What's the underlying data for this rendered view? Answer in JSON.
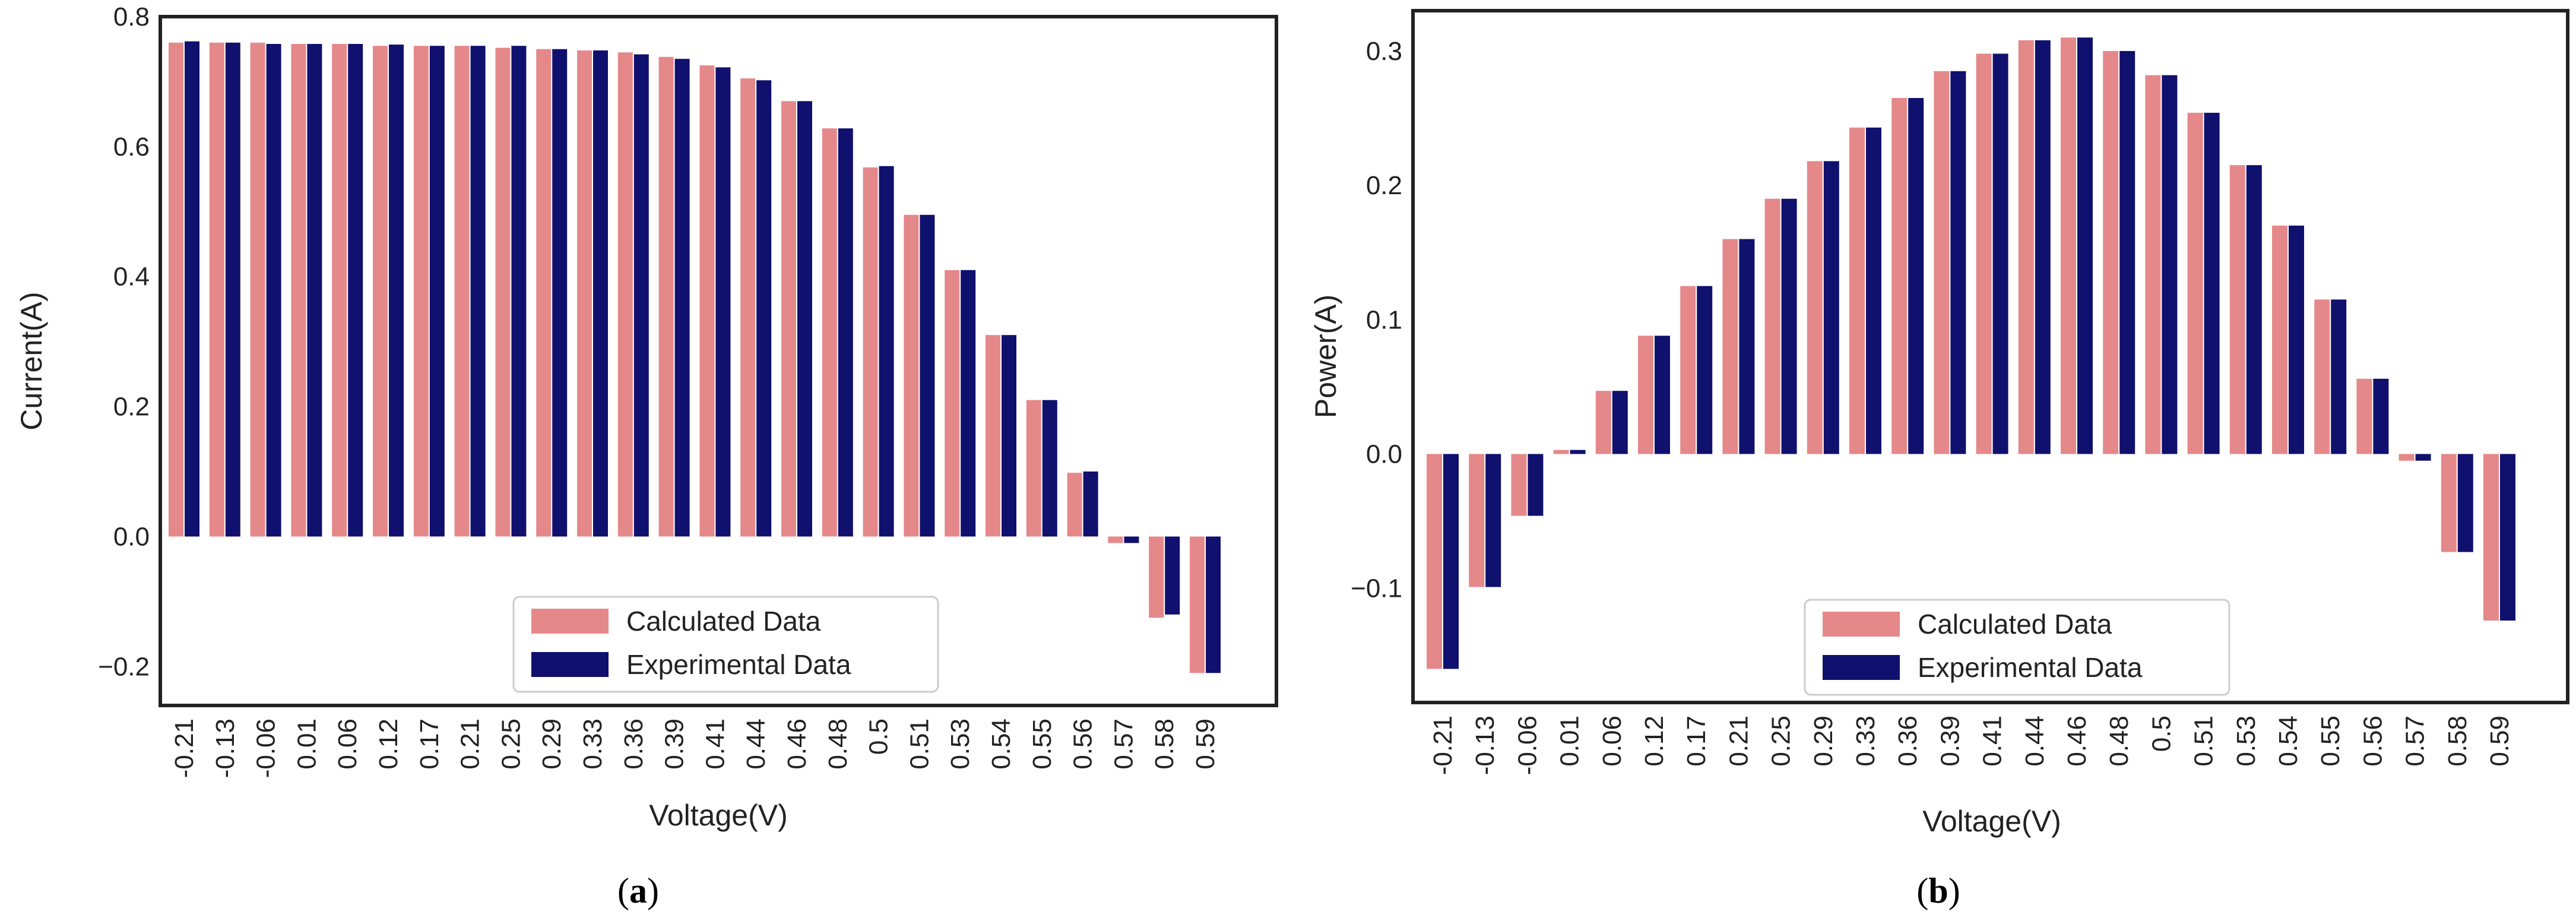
{
  "figure": {
    "caption_a": "(a)",
    "caption_b": "(b)"
  },
  "colors": {
    "calculated": "#E5888A",
    "experimental": "#10106E"
  },
  "chart_data": [
    {
      "id": "a",
      "type": "bar",
      "title": "",
      "xlabel": "Voltage(V)",
      "ylabel": "Current(A)",
      "ylim": [
        -0.26,
        0.8
      ],
      "yticks": [
        -0.2,
        0.0,
        0.2,
        0.4,
        0.6,
        0.8
      ],
      "ytick_labels": [
        "−0.2",
        "0.0",
        "0.2",
        "0.4",
        "0.6",
        "0.8"
      ],
      "categories": [
        "-0.21",
        "-0.13",
        "-0.06",
        "0.01",
        "0.06",
        "0.12",
        "0.17",
        "0.21",
        "0.25",
        "0.29",
        "0.33",
        "0.36",
        "0.39",
        "0.41",
        "0.44",
        "0.46",
        "0.48",
        "0.5",
        "0.51",
        "0.53",
        "0.54",
        "0.55",
        "0.56",
        "0.57",
        "0.58",
        "0.59"
      ],
      "legend": {
        "position": "lower-center",
        "entries": [
          "Calculated Data",
          "Experimental Data"
        ]
      },
      "series": [
        {
          "name": "Calculated Data",
          "values": [
            0.76,
            0.76,
            0.76,
            0.758,
            0.758,
            0.755,
            0.755,
            0.755,
            0.752,
            0.75,
            0.748,
            0.745,
            0.738,
            0.725,
            0.705,
            0.67,
            0.628,
            0.568,
            0.495,
            0.41,
            0.31,
            0.21,
            0.098,
            -0.01,
            -0.125,
            -0.21
          ]
        },
        {
          "name": "Experimental Data",
          "values": [
            0.762,
            0.76,
            0.758,
            0.758,
            0.758,
            0.757,
            0.755,
            0.755,
            0.755,
            0.75,
            0.748,
            0.742,
            0.735,
            0.722,
            0.702,
            0.67,
            0.628,
            0.57,
            0.495,
            0.41,
            0.31,
            0.21,
            0.1,
            -0.01,
            -0.12,
            -0.21
          ]
        }
      ]
    },
    {
      "id": "b",
      "type": "bar",
      "title": "",
      "xlabel": "Voltage(V)",
      "ylabel": "Power(A)",
      "ylim": [
        -0.185,
        0.33
      ],
      "yticks": [
        -0.1,
        0.0,
        0.1,
        0.2,
        0.3
      ],
      "ytick_labels": [
        "−0.1",
        "0.0",
        "0.1",
        "0.2",
        "0.3"
      ],
      "categories": [
        "-0.21",
        "-0.13",
        "-0.06",
        "0.01",
        "0.06",
        "0.12",
        "0.17",
        "0.21",
        "0.25",
        "0.29",
        "0.33",
        "0.36",
        "0.39",
        "0.41",
        "0.44",
        "0.46",
        "0.48",
        "0.5",
        "0.51",
        "0.53",
        "0.54",
        "0.55",
        "0.56",
        "0.57",
        "0.58",
        "0.59"
      ],
      "legend": {
        "position": "lower-center",
        "entries": [
          "Calculated Data",
          "Experimental Data"
        ]
      },
      "series": [
        {
          "name": "Calculated Data",
          "values": [
            -0.16,
            -0.099,
            -0.046,
            0.003,
            0.047,
            0.088,
            0.125,
            0.16,
            0.19,
            0.218,
            0.243,
            0.265,
            0.285,
            0.298,
            0.308,
            0.31,
            0.3,
            0.282,
            0.254,
            0.215,
            0.17,
            0.115,
            0.056,
            -0.005,
            -0.073,
            -0.124
          ]
        },
        {
          "name": "Experimental Data",
          "values": [
            -0.16,
            -0.099,
            -0.046,
            0.003,
            0.047,
            0.088,
            0.125,
            0.16,
            0.19,
            0.218,
            0.243,
            0.265,
            0.285,
            0.298,
            0.308,
            0.31,
            0.3,
            0.282,
            0.254,
            0.215,
            0.17,
            0.115,
            0.056,
            -0.005,
            -0.073,
            -0.124
          ]
        }
      ]
    }
  ]
}
